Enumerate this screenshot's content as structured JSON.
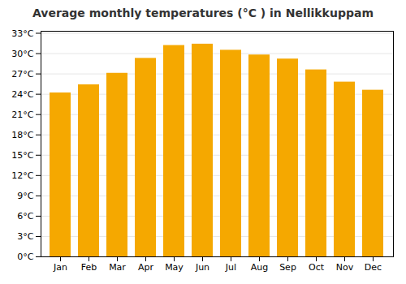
{
  "chart_data": {
    "type": "bar",
    "title": "Average monthly temperatures (°C ) in Nellikkuppam",
    "categories": [
      "Jan",
      "Feb",
      "Mar",
      "Apr",
      "May",
      "Jun",
      "Jul",
      "Aug",
      "Sep",
      "Oct",
      "Nov",
      "Dec"
    ],
    "values": [
      24.2,
      25.4,
      27.1,
      29.3,
      31.2,
      31.4,
      30.5,
      29.8,
      29.2,
      27.6,
      25.8,
      24.6
    ],
    "color": "#F5A800",
    "ylim": [
      0,
      33.3
    ],
    "yticks": [
      {
        "value": 0,
        "label": "0°C"
      },
      {
        "value": 3,
        "label": "3°C"
      },
      {
        "value": 6,
        "label": "6°C"
      },
      {
        "value": 9,
        "label": "9°C"
      },
      {
        "value": 12,
        "label": "12°C"
      },
      {
        "value": 15,
        "label": "15°C"
      },
      {
        "value": 18,
        "label": "18°C"
      },
      {
        "value": 21,
        "label": "21°C"
      },
      {
        "value": 24,
        "label": "24°C"
      },
      {
        "value": 27,
        "label": "27°C"
      },
      {
        "value": 30,
        "label": "30°C"
      },
      {
        "value": 33,
        "label": "33°C"
      }
    ],
    "grid": true
  }
}
